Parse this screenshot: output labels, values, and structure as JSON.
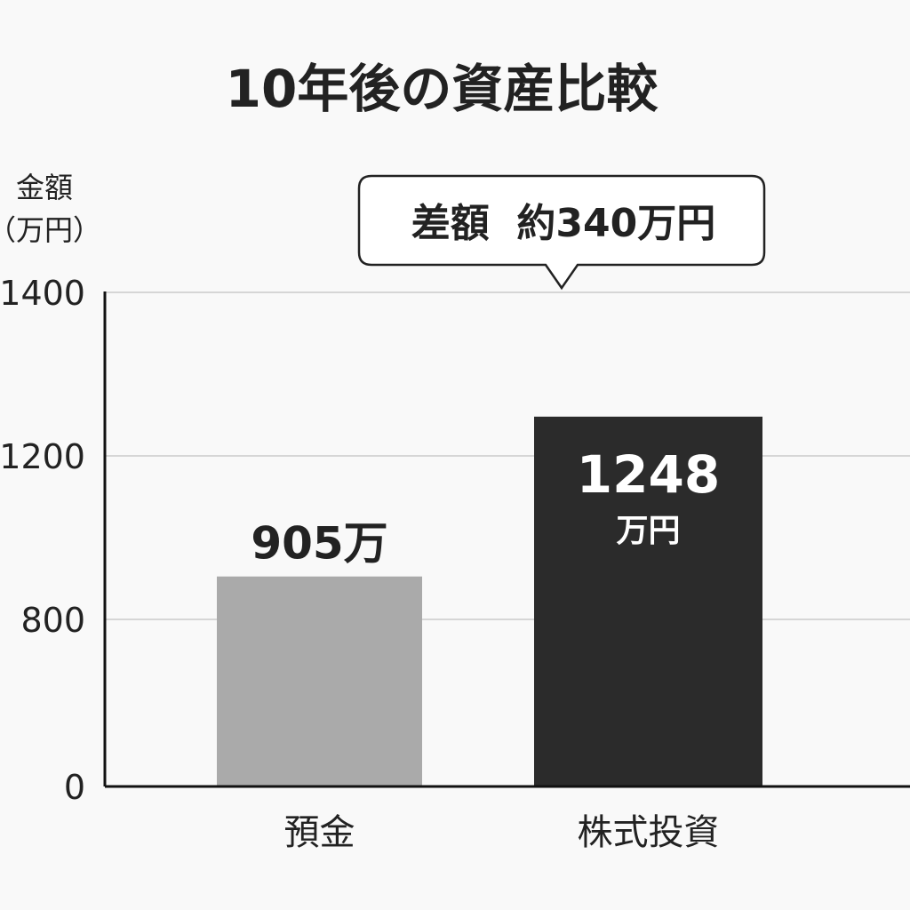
{
  "chart_data": {
    "type": "bar",
    "title": "10年後の資産比較",
    "ylabel_line1": "金額",
    "ylabel_line2": "（万円）",
    "xlabel": "",
    "yticks": [
      {
        "value": 1400,
        "label": "1400"
      },
      {
        "value": 1200,
        "label": "1200"
      },
      {
        "value": 800,
        "label": "800"
      },
      {
        "value": 0,
        "label": "0"
      }
    ],
    "categories": [
      "預金",
      "株式投資"
    ],
    "values": [
      905,
      1248
    ],
    "value_labels": [
      {
        "main": "905万",
        "unit": ""
      },
      {
        "main": "1248",
        "unit": "万円"
      }
    ],
    "callout": "差額  約340万円",
    "grid": true,
    "legend": "none",
    "colors": {
      "bar_deposit": "#aaaaaa",
      "bar_stock": "#2b2b2b",
      "text": "#222222",
      "grid": "#d6d6d6",
      "axis": "#111111",
      "background": "#f9f9f9"
    }
  }
}
